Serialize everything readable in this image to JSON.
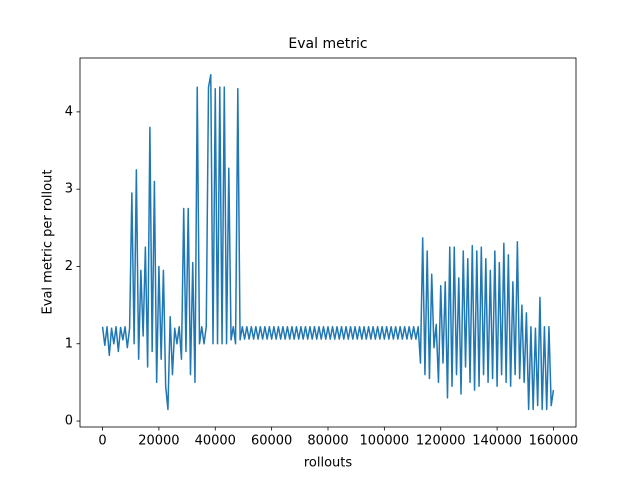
{
  "chart_data": {
    "type": "line",
    "title": "Eval metric",
    "x_label": "rollouts",
    "y_label": "Eval metric per rollout",
    "color": "#1f77b4",
    "x": [
      0,
      800,
      1600,
      2400,
      3200,
      4000,
      4800,
      5600,
      6400,
      7200,
      8000,
      8800,
      9600,
      10400,
      11200,
      12000,
      12800,
      13600,
      14400,
      15200,
      16000,
      16800,
      17600,
      18400,
      19200,
      20000,
      20800,
      21600,
      22400,
      23200,
      24000,
      24800,
      25600,
      26400,
      27200,
      28000,
      28800,
      29600,
      30400,
      31200,
      32000,
      32800,
      33600,
      34400,
      35200,
      36000,
      36800,
      37600,
      38400,
      39200,
      40000,
      40800,
      41600,
      42400,
      43200,
      44000,
      44800,
      45600,
      46400,
      47200,
      48000,
      48800,
      49600,
      50400,
      51200,
      52000,
      52800,
      53600,
      54400,
      55200,
      56000,
      56800,
      57600,
      58400,
      59200,
      60000,
      60800,
      61600,
      62400,
      63200,
      64000,
      64800,
      65600,
      66400,
      67200,
      68000,
      68800,
      69600,
      70400,
      71200,
      72000,
      72800,
      73600,
      74400,
      75200,
      76000,
      76800,
      77600,
      78400,
      79200,
      80000,
      80800,
      81600,
      82400,
      83200,
      84000,
      84800,
      85600,
      86400,
      87200,
      88000,
      88800,
      89600,
      90400,
      91200,
      92000,
      92800,
      93600,
      94400,
      95200,
      96000,
      96800,
      97600,
      98400,
      99200,
      100000,
      100800,
      101600,
      102400,
      103200,
      104000,
      104800,
      105600,
      106400,
      107200,
      108000,
      108800,
      109600,
      110400,
      111200,
      112000,
      112800,
      113600,
      114400,
      115200,
      116000,
      116800,
      117600,
      118400,
      119200,
      120000,
      120800,
      121600,
      122400,
      123200,
      124000,
      124800,
      125600,
      126400,
      127200,
      128000,
      128800,
      129600,
      130400,
      131200,
      132000,
      132800,
      133600,
      134400,
      135200,
      136000,
      136800,
      137600,
      138400,
      139200,
      140000,
      140800,
      141600,
      142400,
      143200,
      144000,
      144800,
      145600,
      146400,
      147200,
      148000,
      148800,
      149600,
      150400,
      151200,
      152000,
      152800,
      153600,
      154400,
      155200,
      156000,
      156800,
      157600,
      158400,
      159200,
      160000
    ],
    "values": [
      1.22,
      0.98,
      1.22,
      0.85,
      1.2,
      1.0,
      1.22,
      0.9,
      1.21,
      1.05,
      1.22,
      0.95,
      1.2,
      2.95,
      1.0,
      3.25,
      0.8,
      1.95,
      1.1,
      2.25,
      0.7,
      3.8,
      0.9,
      3.1,
      0.5,
      2.0,
      0.8,
      1.95,
      0.45,
      0.15,
      1.35,
      0.6,
      1.2,
      1.0,
      1.22,
      0.8,
      2.75,
      0.9,
      2.75,
      0.6,
      2.05,
      0.5,
      4.32,
      1.0,
      1.22,
      1.0,
      1.22,
      4.32,
      4.48,
      1.0,
      4.3,
      1.0,
      4.32,
      1.0,
      4.32,
      1.0,
      3.27,
      1.05,
      1.22,
      1.0,
      4.3,
      1.05,
      1.22,
      1.06,
      1.22,
      1.06,
      1.22,
      1.06,
      1.22,
      1.06,
      1.22,
      1.06,
      1.22,
      1.06,
      1.22,
      1.06,
      1.22,
      1.06,
      1.22,
      1.06,
      1.22,
      1.06,
      1.22,
      1.06,
      1.22,
      1.06,
      1.22,
      1.06,
      1.22,
      1.06,
      1.22,
      1.06,
      1.22,
      1.06,
      1.22,
      1.06,
      1.22,
      1.06,
      1.22,
      1.06,
      1.22,
      1.06,
      1.22,
      1.06,
      1.22,
      1.06,
      1.22,
      1.06,
      1.22,
      1.06,
      1.22,
      1.06,
      1.22,
      1.06,
      1.22,
      1.06,
      1.22,
      1.06,
      1.22,
      1.06,
      1.22,
      1.06,
      1.22,
      1.06,
      1.22,
      1.06,
      1.22,
      1.06,
      1.22,
      1.06,
      1.22,
      1.06,
      1.22,
      1.06,
      1.22,
      1.06,
      1.22,
      1.06,
      1.22,
      1.06,
      1.22,
      0.75,
      2.37,
      0.6,
      2.2,
      0.55,
      1.9,
      0.95,
      1.25,
      0.5,
      1.75,
      0.75,
      1.8,
      0.3,
      2.25,
      0.45,
      2.25,
      0.6,
      1.85,
      0.35,
      2.2,
      0.7,
      2.1,
      0.5,
      2.27,
      0.4,
      2.2,
      0.45,
      2.25,
      0.6,
      2.1,
      0.5,
      1.95,
      0.55,
      2.2,
      0.45,
      2.05,
      0.6,
      2.3,
      0.5,
      2.15,
      0.45,
      1.8,
      0.6,
      2.32,
      0.55,
      1.5,
      0.5,
      1.4,
      0.15,
      1.22,
      0.15,
      1.2,
      0.2,
      1.6,
      0.15,
      1.22,
      0.15,
      1.22,
      0.2,
      0.4
    ],
    "xlim": [
      -8000,
      168000
    ],
    "ylim": [
      -0.077,
      4.697
    ],
    "xticks": [
      0,
      20000,
      40000,
      60000,
      80000,
      100000,
      120000,
      140000,
      160000
    ],
    "yticks": [
      0,
      1,
      2,
      3,
      4
    ],
    "grid": false
  }
}
